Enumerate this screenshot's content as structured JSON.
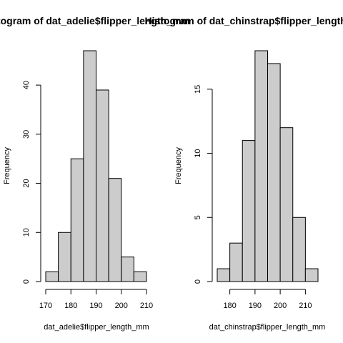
{
  "chart_data": [
    {
      "type": "bar",
      "title": "Histogram of dat_adelie$flipper_length_mm",
      "xlabel": "dat_adelie$flipper_length_mm",
      "ylabel": "Frequency",
      "bin_edges": [
        170,
        175,
        180,
        185,
        190,
        195,
        200,
        205,
        210
      ],
      "values": [
        2,
        10,
        25,
        47,
        39,
        21,
        5,
        2
      ],
      "xticks": [
        170,
        180,
        190,
        200,
        210
      ],
      "yticks": [
        0,
        10,
        20,
        30,
        40
      ],
      "xlim": [
        170,
        210
      ],
      "ylim": [
        0,
        47
      ],
      "grid": false
    },
    {
      "type": "bar",
      "title": "Histogram of dat_chinstrap$flipper_length_mm",
      "xlabel": "dat_chinstrap$flipper_length_mm",
      "ylabel": "Frequency",
      "bin_edges": [
        175,
        180,
        185,
        190,
        195,
        200,
        205,
        210,
        215
      ],
      "values": [
        1,
        3,
        11,
        18,
        17,
        12,
        5,
        1
      ],
      "xticks": [
        180,
        190,
        200,
        210
      ],
      "yticks": [
        0,
        5,
        10,
        15
      ],
      "xlim": [
        175,
        215
      ],
      "ylim": [
        0,
        18
      ],
      "grid": false
    }
  ]
}
